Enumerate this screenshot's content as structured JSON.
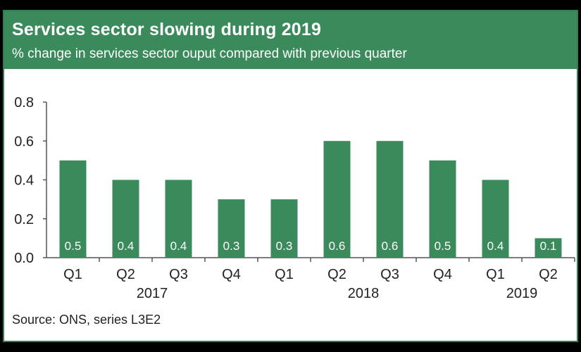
{
  "header": {
    "title": "Services sector slowing during 2019",
    "subtitle": "% change in services sector ouput compared with previous quarter"
  },
  "source": "Source: ONS, series L3E2",
  "colors": {
    "header_bg": "#3a8a5c",
    "bar": "#3a8a5c",
    "axis": "#555555",
    "page_bg": "#000000"
  },
  "chart_data": {
    "type": "bar",
    "categories": [
      "Q1",
      "Q2",
      "Q3",
      "Q4",
      "Q1",
      "Q2",
      "Q3",
      "Q4",
      "Q1",
      "Q2"
    ],
    "groups": [
      {
        "label": "2017",
        "from": 0,
        "to": 3
      },
      {
        "label": "2018",
        "from": 4,
        "to": 7
      },
      {
        "label": "2019",
        "from": 8,
        "to": 9
      }
    ],
    "values": [
      0.5,
      0.4,
      0.4,
      0.3,
      0.3,
      0.6,
      0.6,
      0.5,
      0.4,
      0.1
    ],
    "data_labels": [
      "0.5",
      "0.4",
      "0.4",
      "0.3",
      "0.3",
      "0.6",
      "0.6",
      "0.5",
      "0.4",
      "0.1"
    ],
    "yticks": [
      "0.0",
      "0.2",
      "0.4",
      "0.6",
      "0.8"
    ],
    "ylim": [
      0,
      0.8
    ],
    "xlabel": "",
    "ylabel": "",
    "grid": false,
    "legend": "none"
  }
}
